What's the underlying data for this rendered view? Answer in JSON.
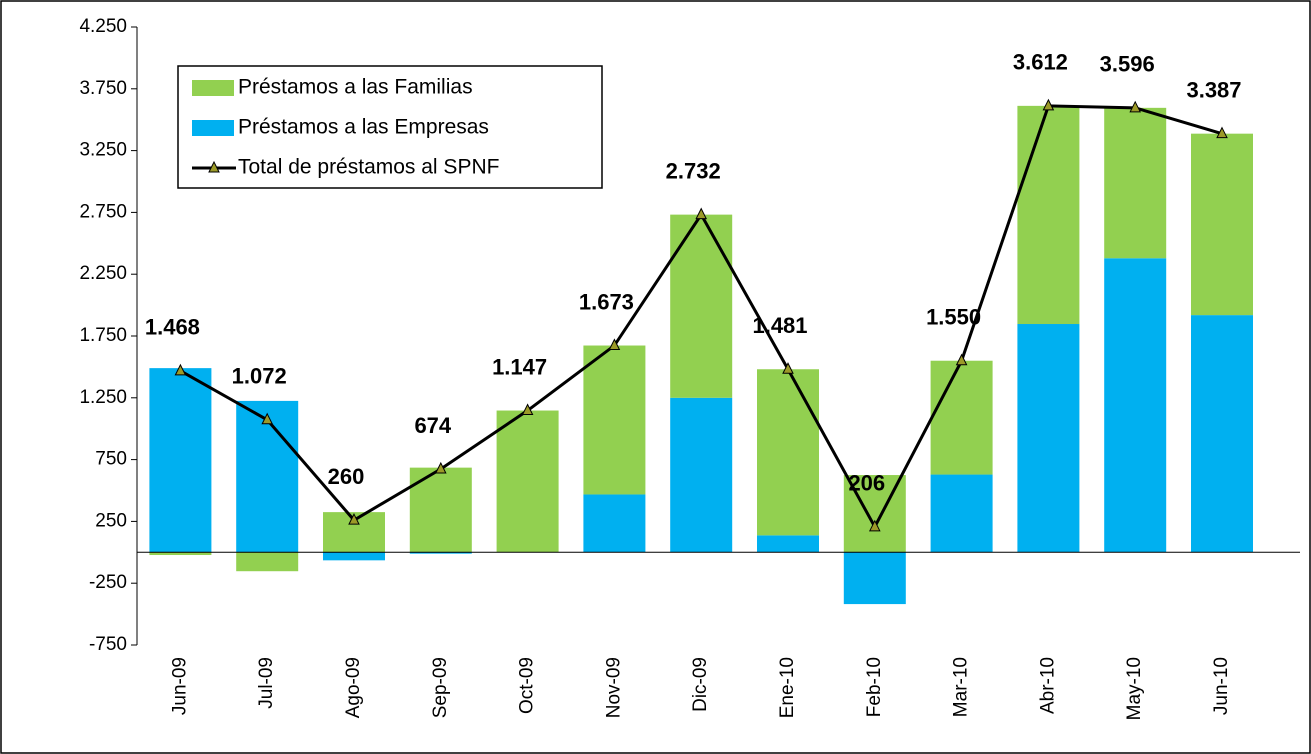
{
  "chart_data": {
    "type": "bar",
    "categories": [
      "Jun-09",
      "Jul-09",
      "Ago-09",
      "Sep-09",
      "Oct-09",
      "Nov-09",
      "Dic-09",
      "Ene-10",
      "Feb-10",
      "Mar-10",
      "Abr-10",
      "May-10",
      "Jun-10"
    ],
    "stacked": true,
    "series": [
      {
        "name": "Préstamos a las Empresas",
        "color": "#00b0f0",
        "values": [
          1490,
          1225,
          -65,
          -11,
          0,
          468,
          1250,
          137,
          -419,
          629,
          1847,
          2379,
          1919
        ]
      },
      {
        "name": "Préstamos a las Familias",
        "color": "#92d050",
        "values": [
          -22,
          -153,
          325,
          685,
          1147,
          1205,
          1482,
          1344,
          625,
          921,
          1765,
          1217,
          1468
        ]
      },
      {
        "name": "Total de préstamos al SPNF",
        "type": "line",
        "color": "#000000",
        "marker_color": "#9c9a28",
        "values": [
          1468,
          1072,
          260,
          674,
          1147,
          1673,
          2732,
          1481,
          206,
          1550,
          3612,
          3596,
          3387
        ],
        "value_labels": [
          "1.468",
          "1.072",
          "260",
          "674",
          "1.147",
          "1.673",
          "2.732",
          "1.481",
          "206",
          "1.550",
          "3.612",
          "3.596",
          "3.387"
        ]
      }
    ],
    "legend_order": [
      1,
      0,
      2
    ],
    "ylim": [
      -750,
      4250
    ],
    "yticks": [
      -750,
      -250,
      250,
      750,
      {
        "value": 1250,
        "label": "1.250"
      },
      {
        "value": 1750,
        "label": "1.750"
      },
      {
        "value": 2250,
        "label": "2.250"
      },
      {
        "value": 2750,
        "label": "2.750"
      },
      {
        "value": 3250,
        "label": "3.250"
      },
      {
        "value": 3750,
        "label": "3.750"
      },
      {
        "value": 4250,
        "label": "4.250"
      }
    ],
    "grid": false,
    "legend": "upper left"
  }
}
